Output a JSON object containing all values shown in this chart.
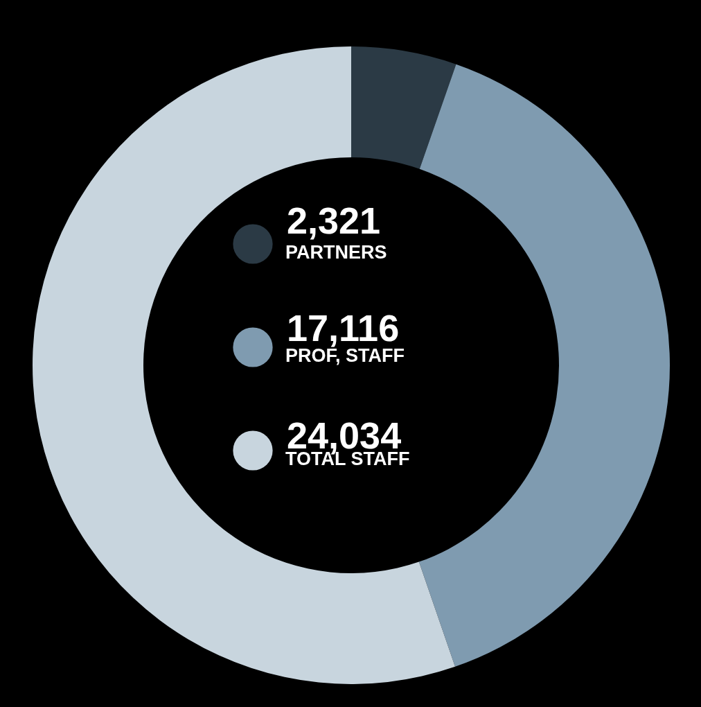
{
  "chart_data": {
    "type": "donut",
    "categories": [
      "PARTNERS",
      "PROF, STAFF",
      "TOTAL STAFF"
    ],
    "values": [
      2321,
      17116,
      24034
    ],
    "value_labels": [
      "2,321",
      "17,116",
      "24,034"
    ],
    "colors": [
      "#2b3a45",
      "#7f9bb0",
      "#c8d5de"
    ],
    "legend": "center"
  }
}
